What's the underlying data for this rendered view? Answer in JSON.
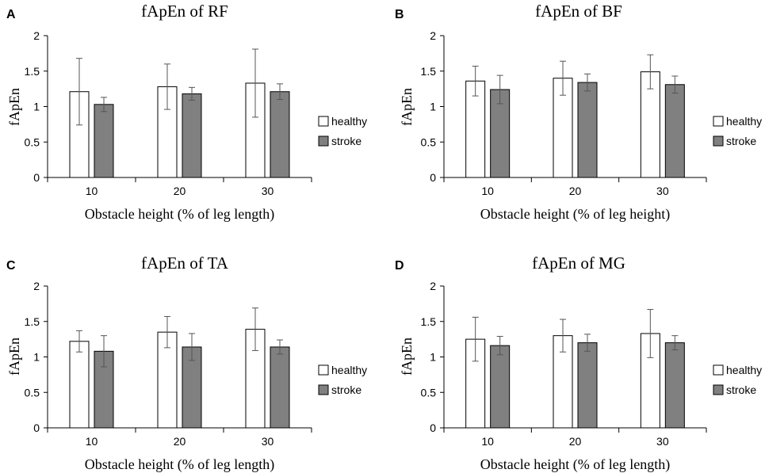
{
  "chart_data": [
    {
      "type": "bar",
      "panel": "A",
      "title": "fApEn of RF",
      "xlabel": "Obstacle height (% of leg length)",
      "ylabel": "fApEn",
      "categories": [
        "10",
        "20",
        "30"
      ],
      "ylim": [
        0,
        2
      ],
      "yticks": [
        "0",
        "0.5",
        "1",
        "1.5",
        "2"
      ],
      "series": [
        {
          "name": "healthy",
          "color": "#ffffff",
          "values": [
            1.21,
            1.28,
            1.33
          ],
          "errors": [
            0.47,
            0.32,
            0.48
          ]
        },
        {
          "name": "stroke",
          "color": "#808080",
          "values": [
            1.03,
            1.18,
            1.21
          ],
          "errors": [
            0.1,
            0.09,
            0.11
          ]
        }
      ]
    },
    {
      "type": "bar",
      "panel": "B",
      "title": "fApEn of BF",
      "xlabel": "Obstacle height (% of leg height)",
      "ylabel": "fApEn",
      "categories": [
        "10",
        "20",
        "30"
      ],
      "ylim": [
        0,
        2
      ],
      "yticks": [
        "0",
        "0.5",
        "1",
        "1.5",
        "2"
      ],
      "series": [
        {
          "name": "healthy",
          "color": "#ffffff",
          "values": [
            1.36,
            1.4,
            1.49
          ],
          "errors": [
            0.21,
            0.24,
            0.24
          ]
        },
        {
          "name": "stroke",
          "color": "#808080",
          "values": [
            1.24,
            1.34,
            1.31
          ],
          "errors": [
            0.2,
            0.12,
            0.12
          ]
        }
      ]
    },
    {
      "type": "bar",
      "panel": "C",
      "title": "fApEn of TA",
      "xlabel": "Obstacle height (% of leg length)",
      "ylabel": "fApEn",
      "categories": [
        "10",
        "20",
        "30"
      ],
      "ylim": [
        0,
        2
      ],
      "yticks": [
        "0",
        "0.5",
        "1",
        "1.5",
        "2"
      ],
      "series": [
        {
          "name": "healthy",
          "color": "#ffffff",
          "values": [
            1.22,
            1.35,
            1.39
          ],
          "errors": [
            0.15,
            0.22,
            0.3
          ]
        },
        {
          "name": "stroke",
          "color": "#808080",
          "values": [
            1.08,
            1.14,
            1.14
          ],
          "errors": [
            0.22,
            0.19,
            0.1
          ]
        }
      ]
    },
    {
      "type": "bar",
      "panel": "D",
      "title": "fApEn of MG",
      "xlabel": "Obstacle height (% of leg length)",
      "ylabel": "fApEn",
      "categories": [
        "10",
        "20",
        "30"
      ],
      "ylim": [
        0,
        2
      ],
      "yticks": [
        "0",
        "0.5",
        "1",
        "1.5",
        "2"
      ],
      "series": [
        {
          "name": "healthy",
          "color": "#ffffff",
          "values": [
            1.25,
            1.3,
            1.33
          ],
          "errors": [
            0.31,
            0.23,
            0.34
          ]
        },
        {
          "name": "stroke",
          "color": "#808080",
          "values": [
            1.16,
            1.2,
            1.2
          ],
          "errors": [
            0.13,
            0.12,
            0.1
          ]
        }
      ]
    }
  ]
}
